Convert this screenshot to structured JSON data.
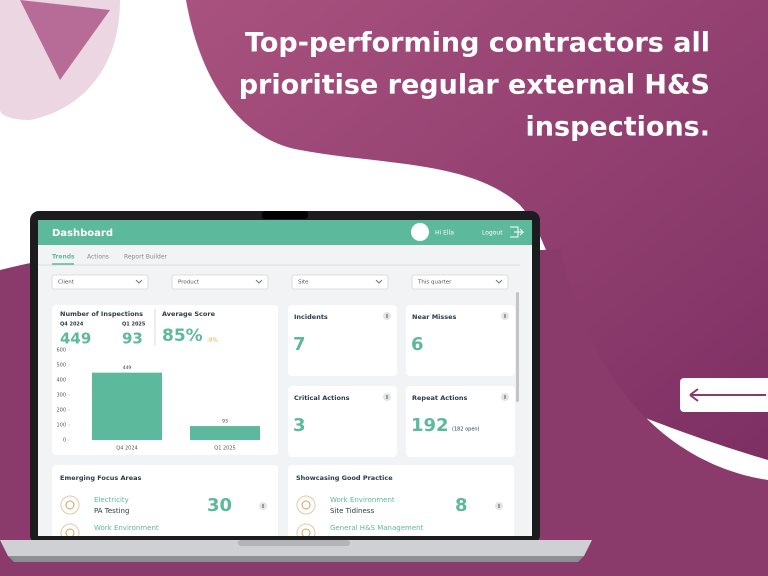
{
  "headline": [
    "Top-performing contractors all",
    "prioritise regular external H&S",
    "inspections."
  ],
  "dashboard": {
    "title": "Dashboard",
    "greeting": "Hi Ella",
    "logout": "Logout",
    "tabs": [
      "Trends",
      "Actions",
      "Report Builder"
    ],
    "filters": [
      "Client",
      "Product",
      "Site",
      "This quarter"
    ],
    "inspections": {
      "title": "Number of Inspections",
      "periods": [
        {
          "label": "Q4 2024",
          "value": 449
        },
        {
          "label": "Q1 2025",
          "value": 93
        }
      ],
      "score_title": "Average Score",
      "score": "85%",
      "score_change": "-8%",
      "chart": {
        "type": "bar",
        "categories": [
          "Q4 2024",
          "Q1 2025"
        ],
        "values": [
          449,
          93
        ],
        "color": "#5db99b",
        "ylim": [
          0,
          600
        ],
        "yticks": [
          0,
          100,
          200,
          300,
          400,
          500,
          600
        ]
      }
    },
    "kpis": [
      {
        "title": "Incidents",
        "value": 7
      },
      {
        "title": "Near Misses",
        "value": 6
      },
      {
        "title": "Critical Actions",
        "value": 3
      },
      {
        "title": "Repeat Actions",
        "value": 192,
        "note": "(182 open)"
      }
    ],
    "focus": {
      "title": "Emerging Focus Areas",
      "items": [
        {
          "category": "Electricity",
          "topic": "PA Testing",
          "value": 30
        },
        {
          "category": "Work Environment"
        }
      ]
    },
    "practice": {
      "title": "Showcasing Good Practice",
      "items": [
        {
          "category": "Work Environment",
          "topic": "Site Tidiness",
          "value": 8
        },
        {
          "category": "General H&S Management"
        }
      ]
    }
  }
}
